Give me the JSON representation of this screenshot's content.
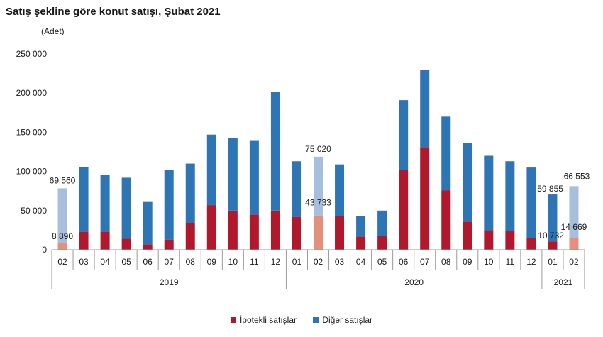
{
  "chart_data": {
    "type": "bar",
    "stacked": true,
    "title": "Satış şekline göre konut satışı, Şubat 2021",
    "ylabel": "(Adet)",
    "ylim": [
      0,
      250000
    ],
    "yticks": [
      "0",
      "50 000",
      "100 000",
      "150 000",
      "200 000",
      "250 000"
    ],
    "ytick_values": [
      0,
      50000,
      100000,
      150000,
      200000,
      250000
    ],
    "grid": false,
    "legend_position": "bottom",
    "categories": [
      "02",
      "03",
      "04",
      "05",
      "06",
      "07",
      "08",
      "09",
      "10",
      "11",
      "12",
      "01",
      "02",
      "03",
      "04",
      "05",
      "06",
      "07",
      "08",
      "09",
      "10",
      "11",
      "12",
      "01",
      "02"
    ],
    "groups": [
      {
        "label": "2019",
        "start": 0,
        "end": 10
      },
      {
        "label": "2020",
        "start": 11,
        "end": 22
      },
      {
        "label": "2021",
        "start": 23,
        "end": 24
      }
    ],
    "highlight_indices": [
      0,
      12,
      24
    ],
    "series": [
      {
        "name": "İpotekli satışlar",
        "color": "#b2182b",
        "highlight_color": "#e3917b",
        "values": [
          8890,
          23000,
          23000,
          14000,
          7000,
          13000,
          34000,
          57000,
          50000,
          45000,
          50000,
          42000,
          43733,
          43000,
          17000,
          18000,
          102000,
          131000,
          76000,
          36000,
          25000,
          24000,
          15000,
          10732,
          14669
        ]
      },
      {
        "name": "Diğer satışlar",
        "color": "#2e75b6",
        "highlight_color": "#a7bedf",
        "values": [
          69560,
          83000,
          73000,
          78000,
          54000,
          89000,
          76000,
          90000,
          93000,
          94000,
          152000,
          71000,
          75020,
          66000,
          26000,
          32000,
          89000,
          99000,
          94000,
          100000,
          95000,
          89000,
          90000,
          59855,
          66553
        ]
      }
    ],
    "data_labels": [
      {
        "index": 0,
        "series": 1,
        "text": "69 560"
      },
      {
        "index": 0,
        "series": 0,
        "text": "8 890"
      },
      {
        "index": 12,
        "series": 1,
        "text": "75 020"
      },
      {
        "index": 12,
        "series": 0,
        "text": "43 733"
      },
      {
        "index": 23,
        "series": 1,
        "text": "59 855"
      },
      {
        "index": 23,
        "series": 0,
        "text": "10 732"
      },
      {
        "index": 24,
        "series": 1,
        "text": "66 553"
      },
      {
        "index": 24,
        "series": 0,
        "text": "14 669"
      }
    ]
  }
}
